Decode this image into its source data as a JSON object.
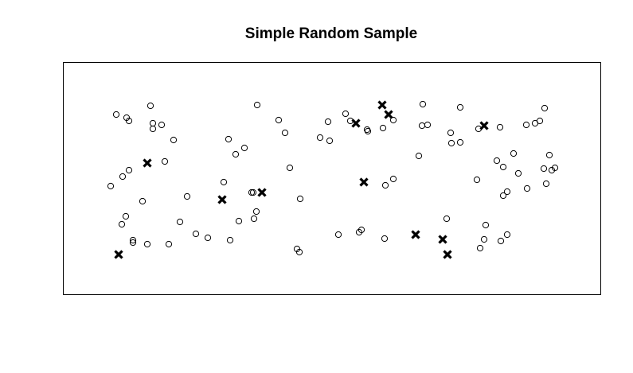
{
  "chart_data": {
    "type": "scatter",
    "title": "Simple Random Sample",
    "xlabel": "",
    "ylabel": "",
    "grid": false,
    "axes_visible": false,
    "colors": {
      "points": "#000000",
      "frame": "#000000",
      "background": "#ffffff"
    },
    "series": [
      {
        "marker": "open-circle",
        "points": [
          [
            146,
            144
          ],
          [
            159,
            148
          ],
          [
            162,
            152
          ],
          [
            189,
            133
          ],
          [
            192,
            155
          ],
          [
            192,
            162
          ],
          [
            203,
            157
          ],
          [
            218,
            176
          ],
          [
            207,
            203
          ],
          [
            162,
            214
          ],
          [
            154,
            222
          ],
          [
            139,
            234
          ],
          [
            179,
            253
          ],
          [
            158,
            272
          ],
          [
            153,
            282
          ],
          [
            167,
            302
          ],
          [
            167,
            305
          ],
          [
            185,
            307
          ],
          [
            212,
            307
          ],
          [
            226,
            279
          ],
          [
            235,
            247
          ],
          [
            246,
            294
          ],
          [
            261,
            299
          ],
          [
            289,
            302
          ],
          [
            300,
            278
          ],
          [
            281,
            229
          ],
          [
            287,
            175
          ],
          [
            296,
            194
          ],
          [
            307,
            186
          ],
          [
            316,
            242
          ],
          [
            322,
            266
          ],
          [
            319,
            275
          ],
          [
            318,
            242
          ],
          [
            323,
            132
          ],
          [
            350,
            151
          ],
          [
            358,
            167
          ],
          [
            364,
            211
          ],
          [
            377,
            250
          ],
          [
            373,
            313
          ],
          [
            376,
            317
          ],
          [
            402,
            173
          ],
          [
            414,
            177
          ],
          [
            412,
            153
          ],
          [
            434,
            143
          ],
          [
            440,
            152
          ],
          [
            461,
            163
          ],
          [
            462,
            165
          ],
          [
            481,
            161
          ],
          [
            494,
            151
          ],
          [
            484,
            233
          ],
          [
            494,
            225
          ],
          [
            531,
            131
          ],
          [
            530,
            158
          ],
          [
            537,
            157
          ],
          [
            526,
            196
          ],
          [
            566,
            167
          ],
          [
            567,
            180
          ],
          [
            578,
            179
          ],
          [
            578,
            135
          ],
          [
            599,
            226
          ],
          [
            601,
            162
          ],
          [
            628,
            160
          ],
          [
            624,
            202
          ],
          [
            632,
            210
          ],
          [
            645,
            193
          ],
          [
            651,
            218
          ],
          [
            637,
            241
          ],
          [
            632,
            246
          ],
          [
            662,
            237
          ],
          [
            661,
            157
          ],
          [
            672,
            155
          ],
          [
            678,
            152
          ],
          [
            684,
            136
          ],
          [
            690,
            195
          ],
          [
            683,
            212
          ],
          [
            693,
            214
          ],
          [
            697,
            211
          ],
          [
            686,
            231
          ],
          [
            610,
            283
          ],
          [
            608,
            301
          ],
          [
            603,
            312
          ],
          [
            629,
            303
          ],
          [
            637,
            295
          ],
          [
            561,
            275
          ],
          [
            483,
            300
          ],
          [
            454,
            289
          ],
          [
            451,
            292
          ],
          [
            425,
            295
          ]
        ]
      },
      {
        "marker": "cross",
        "points": [
          [
            185,
            205
          ],
          [
            149,
            320
          ],
          [
            279,
            251
          ],
          [
            329,
            242
          ],
          [
            447,
            155
          ],
          [
            480,
            132
          ],
          [
            488,
            144
          ],
          [
            457,
            229
          ],
          [
            522,
            295
          ],
          [
            556,
            301
          ],
          [
            562,
            320
          ],
          [
            608,
            158
          ]
        ]
      }
    ]
  }
}
